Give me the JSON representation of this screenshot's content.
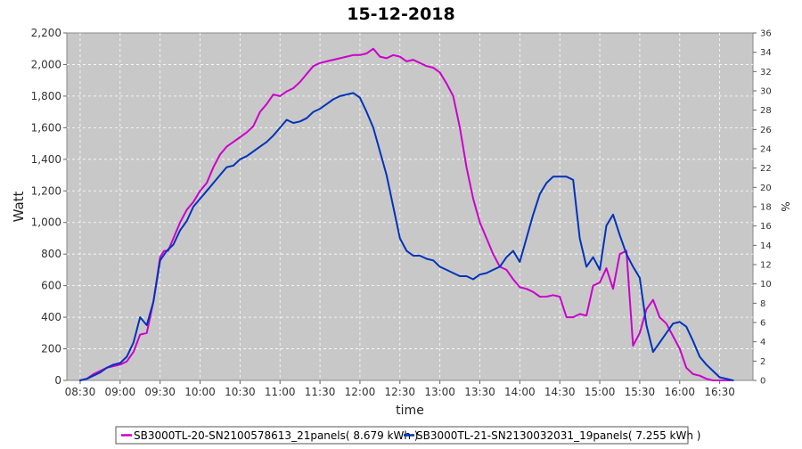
{
  "chart_data": {
    "type": "line",
    "title": "15-12-2018",
    "xlabel": "time",
    "ylabel": "Watt",
    "y2label": "%",
    "ylim": [
      0,
      2200
    ],
    "y2lim": [
      0,
      36
    ],
    "xlim": [
      "08:20",
      "16:55"
    ],
    "x_ticks": [
      "08:30",
      "09:00",
      "09:30",
      "10:00",
      "10:30",
      "11:00",
      "11:30",
      "12:00",
      "12:30",
      "13:00",
      "13:30",
      "14:00",
      "14:30",
      "15:00",
      "15:30",
      "16:00",
      "16:30"
    ],
    "y_ticks": [
      0,
      200,
      400,
      600,
      800,
      1000,
      1200,
      1400,
      1600,
      1800,
      2000,
      2200
    ],
    "y_tick_labels": [
      "0",
      "200",
      "400",
      "600",
      "800",
      "1,000",
      "1,200",
      "1,400",
      "1,600",
      "1,800",
      "2,000",
      "2,200"
    ],
    "y2_ticks": [
      0,
      2,
      4,
      6,
      8,
      10,
      12,
      14,
      16,
      18,
      20,
      22,
      24,
      26,
      28,
      30,
      32,
      34,
      36
    ],
    "grid": true,
    "legend_position": "bottom",
    "colors": {
      "plot_background": "#c8c8c8",
      "grid": "#ffffff"
    },
    "series": [
      {
        "name": "SB3000TL-20-SN2100578613_21panels( 8.679 kWh )",
        "color": "#cc00cc",
        "x": [
          "08:30",
          "08:35",
          "08:40",
          "08:45",
          "08:50",
          "08:55",
          "09:00",
          "09:05",
          "09:10",
          "09:15",
          "09:20",
          "09:25",
          "09:30",
          "09:33",
          "09:36",
          "09:40",
          "09:45",
          "09:50",
          "09:55",
          "10:00",
          "10:05",
          "10:10",
          "10:15",
          "10:20",
          "10:25",
          "10:30",
          "10:35",
          "10:40",
          "10:45",
          "10:50",
          "10:55",
          "11:00",
          "11:05",
          "11:10",
          "11:15",
          "11:20",
          "11:25",
          "11:30",
          "11:35",
          "11:40",
          "11:45",
          "11:50",
          "11:55",
          "12:00",
          "12:05",
          "12:10",
          "12:15",
          "12:20",
          "12:25",
          "12:30",
          "12:35",
          "12:40",
          "12:45",
          "12:50",
          "12:55",
          "13:00",
          "13:05",
          "13:10",
          "13:15",
          "13:20",
          "13:25",
          "13:30",
          "13:35",
          "13:40",
          "13:45",
          "13:50",
          "13:55",
          "14:00",
          "14:05",
          "14:10",
          "14:15",
          "14:20",
          "14:25",
          "14:30",
          "14:35",
          "14:40",
          "14:45",
          "14:50",
          "14:55",
          "15:00",
          "15:05",
          "15:10",
          "15:15",
          "15:20",
          "15:25",
          "15:30",
          "15:35",
          "15:40",
          "15:45",
          "15:50",
          "15:55",
          "16:00",
          "16:05",
          "16:10",
          "16:15",
          "16:20",
          "16:25",
          "16:30",
          "16:35",
          "16:38"
        ],
        "values": [
          0,
          10,
          40,
          60,
          80,
          90,
          100,
          120,
          180,
          290,
          300,
          500,
          780,
          820,
          820,
          900,
          1000,
          1080,
          1130,
          1200,
          1250,
          1350,
          1430,
          1480,
          1510,
          1540,
          1570,
          1610,
          1700,
          1750,
          1810,
          1800,
          1830,
          1850,
          1890,
          1940,
          1990,
          2010,
          2020,
          2030,
          2040,
          2050,
          2060,
          2060,
          2070,
          2100,
          2050,
          2040,
          2060,
          2050,
          2020,
          2030,
          2010,
          1990,
          1980,
          1950,
          1880,
          1800,
          1600,
          1350,
          1150,
          1000,
          900,
          800,
          720,
          700,
          640,
          590,
          580,
          560,
          530,
          530,
          540,
          530,
          400,
          400,
          420,
          410,
          600,
          620,
          710,
          580,
          800,
          820,
          220,
          300,
          450,
          510,
          400,
          360,
          280,
          200,
          80,
          40,
          30,
          10,
          0,
          0,
          0,
          0
        ]
      },
      {
        "name": "SB3000TL-21-SN2130032031_19panels( 7.255 kWh )",
        "color": "#0033bb",
        "x": [
          "08:30",
          "08:35",
          "08:40",
          "08:45",
          "08:50",
          "08:55",
          "09:00",
          "09:05",
          "09:10",
          "09:15",
          "09:20",
          "09:25",
          "09:30",
          "09:35",
          "09:40",
          "09:45",
          "09:50",
          "09:55",
          "10:00",
          "10:05",
          "10:10",
          "10:15",
          "10:20",
          "10:25",
          "10:30",
          "10:35",
          "10:40",
          "10:45",
          "10:50",
          "10:55",
          "11:00",
          "11:05",
          "11:10",
          "11:15",
          "11:20",
          "11:25",
          "11:30",
          "11:35",
          "11:40",
          "11:45",
          "11:50",
          "11:55",
          "12:00",
          "12:05",
          "12:10",
          "12:15",
          "12:20",
          "12:25",
          "12:30",
          "12:35",
          "12:40",
          "12:45",
          "12:50",
          "12:55",
          "13:00",
          "13:05",
          "13:10",
          "13:15",
          "13:20",
          "13:25",
          "13:30",
          "13:35",
          "13:40",
          "13:45",
          "13:50",
          "13:55",
          "14:00",
          "14:05",
          "14:10",
          "14:15",
          "14:20",
          "14:25",
          "14:30",
          "14:35",
          "14:40",
          "14:45",
          "14:50",
          "14:55",
          "15:00",
          "15:05",
          "15:10",
          "15:15",
          "15:20",
          "15:25",
          "15:30",
          "15:35",
          "15:40",
          "15:45",
          "15:50",
          "15:55",
          "16:00",
          "16:05",
          "16:10",
          "16:15",
          "16:20",
          "16:25",
          "16:30",
          "16:35",
          "16:40"
        ],
        "values": [
          0,
          10,
          30,
          50,
          80,
          100,
          110,
          150,
          240,
          400,
          350,
          500,
          760,
          820,
          860,
          950,
          1010,
          1100,
          1150,
          1200,
          1250,
          1300,
          1350,
          1360,
          1400,
          1420,
          1450,
          1480,
          1510,
          1550,
          1600,
          1650,
          1630,
          1640,
          1660,
          1700,
          1720,
          1750,
          1780,
          1800,
          1810,
          1820,
          1790,
          1700,
          1600,
          1450,
          1300,
          1100,
          900,
          820,
          790,
          790,
          770,
          760,
          720,
          700,
          680,
          660,
          660,
          640,
          670,
          680,
          700,
          720,
          780,
          820,
          750,
          900,
          1050,
          1180,
          1250,
          1290,
          1290,
          1290,
          1270,
          900,
          720,
          780,
          700,
          980,
          1050,
          920,
          800,
          720,
          650,
          350,
          180,
          240,
          300,
          360,
          370,
          340,
          250,
          150,
          100,
          60,
          20,
          10,
          0
        ]
      }
    ]
  }
}
